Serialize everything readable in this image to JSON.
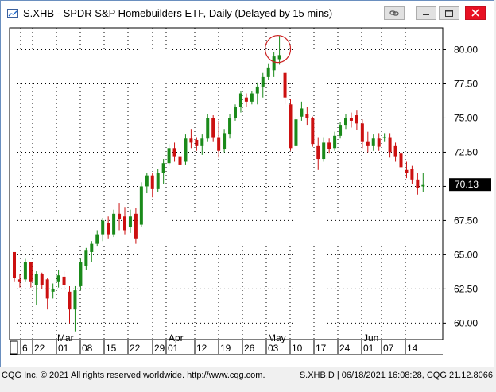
{
  "window": {
    "title": "S.XHB - SPDR S&P Homebuilders ETF, Daily (Delayed by 15 mins)"
  },
  "titlebar_buttons": [
    {
      "name": "link-icon"
    },
    {
      "name": "minimize-icon"
    },
    {
      "name": "restore-icon"
    },
    {
      "name": "close-icon"
    }
  ],
  "colors": {
    "up": "#1a8a1a",
    "down": "#cc1010",
    "annotation": "#cc2222",
    "grid": "#000000"
  },
  "chart_data": {
    "type": "candlestick",
    "y_ticks": [
      "80.00",
      "77.50",
      "75.00",
      "72.50",
      "70.00",
      "67.50",
      "65.00",
      "62.50",
      "60.00"
    ],
    "ylim": [
      58.8,
      81.6
    ],
    "last_price": "70.13",
    "month_labels": [
      "Mar",
      "Apr",
      "May",
      "Jun"
    ],
    "day_labels": [
      "6",
      "22",
      "01",
      "08",
      "15",
      "22",
      "29",
      "01",
      "12",
      "19",
      "26",
      "03",
      "10",
      "17",
      "24",
      "01",
      "07",
      "14"
    ],
    "candles": [
      {
        "o": 65.2,
        "h": 65.2,
        "l": 63.0,
        "c": 63.3
      },
      {
        "o": 63.2,
        "h": 63.6,
        "l": 62.6,
        "c": 63.0
      },
      {
        "o": 63.2,
        "h": 64.7,
        "l": 63.0,
        "c": 64.5
      },
      {
        "o": 64.5,
        "h": 64.5,
        "l": 62.6,
        "c": 63.0
      },
      {
        "o": 62.8,
        "h": 63.8,
        "l": 61.3,
        "c": 63.6
      },
      {
        "o": 63.6,
        "h": 63.7,
        "l": 62.5,
        "c": 62.8
      },
      {
        "o": 63.2,
        "h": 63.3,
        "l": 61.0,
        "c": 61.8
      },
      {
        "o": 62.3,
        "h": 62.9,
        "l": 61.8,
        "c": 62.5
      },
      {
        "o": 63.0,
        "h": 63.9,
        "l": 62.6,
        "c": 63.5
      },
      {
        "o": 63.4,
        "h": 63.8,
        "l": 62.4,
        "c": 62.8
      },
      {
        "o": 62.3,
        "h": 62.7,
        "l": 60.0,
        "c": 61.0
      },
      {
        "o": 61.0,
        "h": 62.7,
        "l": 59.4,
        "c": 62.4
      },
      {
        "o": 62.7,
        "h": 64.7,
        "l": 62.4,
        "c": 64.5
      },
      {
        "o": 64.2,
        "h": 65.5,
        "l": 63.9,
        "c": 65.3
      },
      {
        "o": 65.2,
        "h": 66.0,
        "l": 64.5,
        "c": 65.8
      },
      {
        "o": 65.8,
        "h": 66.8,
        "l": 65.6,
        "c": 66.5
      },
      {
        "o": 66.5,
        "h": 67.7,
        "l": 66.0,
        "c": 67.5
      },
      {
        "o": 67.3,
        "h": 67.8,
        "l": 66.2,
        "c": 66.5
      },
      {
        "o": 66.5,
        "h": 68.3,
        "l": 66.3,
        "c": 68.0
      },
      {
        "o": 68.0,
        "h": 68.8,
        "l": 66.8,
        "c": 67.6
      },
      {
        "o": 67.8,
        "h": 68.5,
        "l": 66.5,
        "c": 66.8
      },
      {
        "o": 67.0,
        "h": 68.3,
        "l": 66.6,
        "c": 67.8
      },
      {
        "o": 68.0,
        "h": 68.4,
        "l": 65.8,
        "c": 66.2
      },
      {
        "o": 67.2,
        "h": 70.3,
        "l": 67.0,
        "c": 70.0
      },
      {
        "o": 70.0,
        "h": 71.0,
        "l": 69.5,
        "c": 70.8
      },
      {
        "o": 70.8,
        "h": 71.0,
        "l": 69.2,
        "c": 69.8
      },
      {
        "o": 69.8,
        "h": 71.3,
        "l": 69.6,
        "c": 71.0
      },
      {
        "o": 71.0,
        "h": 72.0,
        "l": 70.2,
        "c": 71.7
      },
      {
        "o": 71.7,
        "h": 73.1,
        "l": 71.5,
        "c": 72.8
      },
      {
        "o": 72.8,
        "h": 73.2,
        "l": 71.8,
        "c": 72.2
      },
      {
        "o": 72.2,
        "h": 72.7,
        "l": 71.3,
        "c": 71.6
      },
      {
        "o": 71.8,
        "h": 73.8,
        "l": 71.6,
        "c": 73.5
      },
      {
        "o": 73.5,
        "h": 74.2,
        "l": 72.8,
        "c": 73.2
      },
      {
        "o": 73.4,
        "h": 73.6,
        "l": 72.6,
        "c": 73.0
      },
      {
        "o": 73.0,
        "h": 73.8,
        "l": 72.3,
        "c": 73.5
      },
      {
        "o": 73.5,
        "h": 75.3,
        "l": 73.3,
        "c": 75.0
      },
      {
        "o": 75.0,
        "h": 75.2,
        "l": 73.3,
        "c": 73.6
      },
      {
        "o": 73.6,
        "h": 74.8,
        "l": 72.1,
        "c": 72.6
      },
      {
        "o": 72.7,
        "h": 74.2,
        "l": 72.5,
        "c": 73.9
      },
      {
        "o": 73.8,
        "h": 75.3,
        "l": 73.5,
        "c": 75.0
      },
      {
        "o": 75.0,
        "h": 76.0,
        "l": 74.8,
        "c": 75.8
      },
      {
        "o": 75.8,
        "h": 77.0,
        "l": 75.4,
        "c": 76.8
      },
      {
        "o": 76.5,
        "h": 76.8,
        "l": 75.8,
        "c": 76.2
      },
      {
        "o": 76.2,
        "h": 77.0,
        "l": 76.0,
        "c": 76.8
      },
      {
        "o": 76.8,
        "h": 77.6,
        "l": 76.0,
        "c": 77.3
      },
      {
        "o": 77.3,
        "h": 78.3,
        "l": 76.5,
        "c": 78.0
      },
      {
        "o": 78.0,
        "h": 79.0,
        "l": 77.8,
        "c": 78.7
      },
      {
        "o": 78.5,
        "h": 79.8,
        "l": 78.0,
        "c": 79.5
      },
      {
        "o": 79.3,
        "h": 81.0,
        "l": 78.9,
        "c": 79.6
      },
      {
        "o": 78.3,
        "h": 78.4,
        "l": 76.0,
        "c": 76.5
      },
      {
        "o": 76.0,
        "h": 76.4,
        "l": 72.6,
        "c": 72.8
      },
      {
        "o": 73.0,
        "h": 75.1,
        "l": 72.9,
        "c": 74.9
      },
      {
        "o": 75.1,
        "h": 76.2,
        "l": 74.8,
        "c": 75.7
      },
      {
        "o": 75.3,
        "h": 75.8,
        "l": 74.5,
        "c": 75.0
      },
      {
        "o": 75.0,
        "h": 75.1,
        "l": 72.9,
        "c": 73.1
      },
      {
        "o": 73.0,
        "h": 73.6,
        "l": 71.2,
        "c": 72.0
      },
      {
        "o": 72.0,
        "h": 73.6,
        "l": 71.8,
        "c": 73.2
      },
      {
        "o": 73.2,
        "h": 73.5,
        "l": 72.4,
        "c": 72.7
      },
      {
        "o": 72.8,
        "h": 74.0,
        "l": 72.6,
        "c": 73.7
      },
      {
        "o": 73.7,
        "h": 74.7,
        "l": 73.5,
        "c": 74.5
      },
      {
        "o": 74.5,
        "h": 75.3,
        "l": 74.2,
        "c": 75.0
      },
      {
        "o": 75.0,
        "h": 75.4,
        "l": 74.3,
        "c": 74.8
      },
      {
        "o": 75.2,
        "h": 75.6,
        "l": 74.1,
        "c": 74.6
      },
      {
        "o": 74.6,
        "h": 74.9,
        "l": 72.8,
        "c": 73.3
      },
      {
        "o": 73.3,
        "h": 74.0,
        "l": 72.5,
        "c": 73.0
      },
      {
        "o": 73.0,
        "h": 73.8,
        "l": 72.6,
        "c": 73.5
      },
      {
        "o": 73.5,
        "h": 73.9,
        "l": 72.6,
        "c": 72.9
      },
      {
        "o": 73.6,
        "h": 73.9,
        "l": 73.3,
        "c": 73.6
      },
      {
        "o": 73.6,
        "h": 73.9,
        "l": 72.1,
        "c": 72.5
      },
      {
        "o": 73.0,
        "h": 73.2,
        "l": 71.8,
        "c": 72.2
      },
      {
        "o": 72.4,
        "h": 72.5,
        "l": 71.1,
        "c": 71.4
      },
      {
        "o": 71.2,
        "h": 71.8,
        "l": 70.6,
        "c": 71.0
      },
      {
        "o": 71.3,
        "h": 71.5,
        "l": 70.2,
        "c": 70.5
      },
      {
        "o": 70.5,
        "h": 71.0,
        "l": 69.4,
        "c": 69.9
      },
      {
        "o": 70.0,
        "h": 71.0,
        "l": 69.6,
        "c": 70.1
      }
    ],
    "annotation": "circle at May high"
  },
  "status": {
    "left": "CQG Inc. © 2021 All rights reserved worldwide. http://www.cqg.com.",
    "right": "S.XHB,D | 06/18/2021 16:08:28, CQG 21.12.8066"
  }
}
